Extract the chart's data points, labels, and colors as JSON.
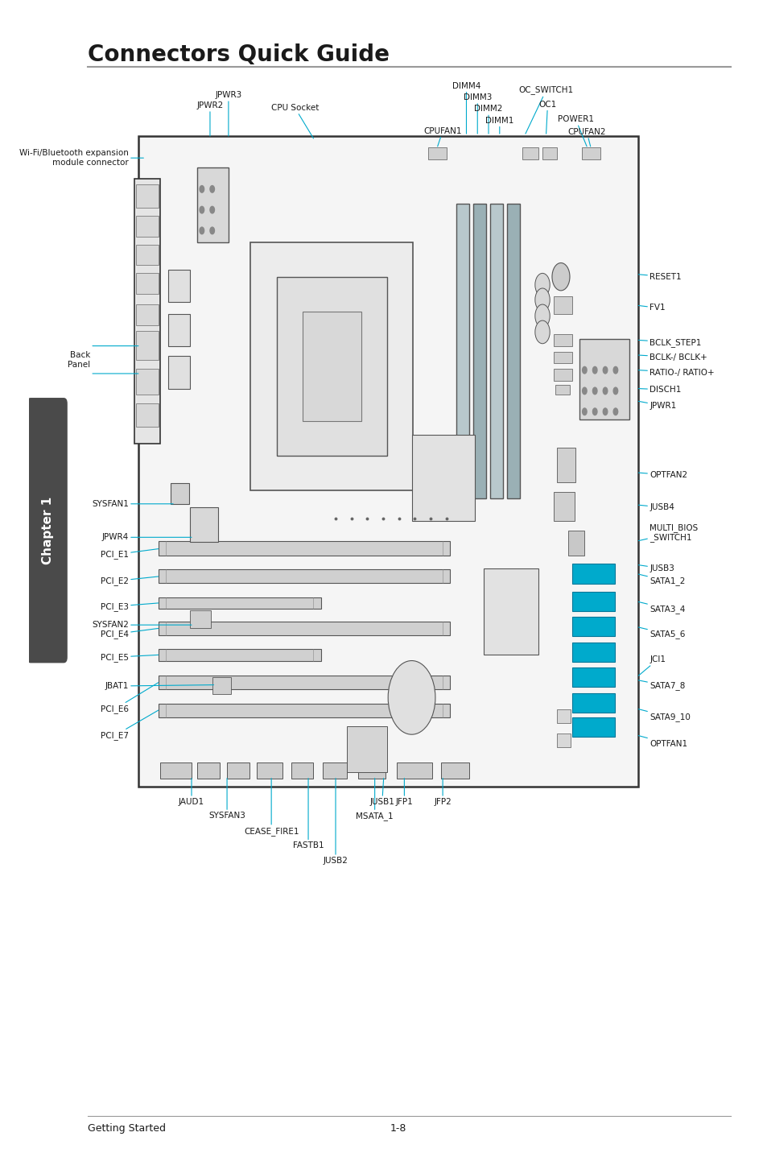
{
  "title": "Connectors Quick Guide",
  "footer_left": "Getting Started",
  "footer_right": "1-8",
  "bg_color": "#ffffff",
  "title_color": "#1a1a1a",
  "line_color": "#999999",
  "connector_line_color": "#00aacc",
  "text_color": "#1a1a1a",
  "chapter_bg": "#4a4a4a",
  "chapter_text": "Chapter 1",
  "board_outline_color": "#333333"
}
